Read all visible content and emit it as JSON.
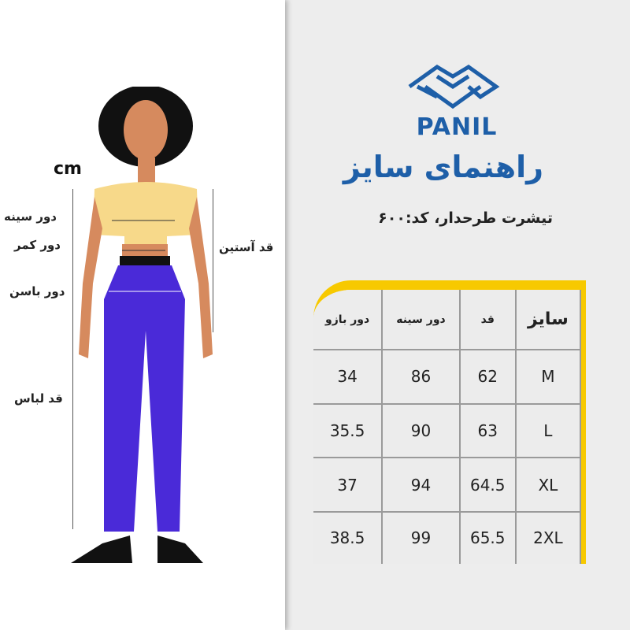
{
  "figure": {
    "unit": "cm",
    "labels": {
      "chest": "دور سینه",
      "waist": "دور کمر",
      "hip": "دور باسن",
      "length": "قد لباس",
      "sleeve": "قد آستین"
    }
  },
  "brand": {
    "name": "PANIL",
    "color": "#1e5fa8"
  },
  "title": "راهنمای سایز",
  "subtitle": "تیشرت طرحدار، کد:۶۰۰",
  "table": {
    "headers": [
      "دور بازو",
      "دور سینه",
      "قد",
      "سایز"
    ],
    "rows": [
      [
        "34",
        "86",
        "62",
        "M"
      ],
      [
        "35.5",
        "90",
        "63",
        "L"
      ],
      [
        "37",
        "94",
        "64.5",
        "XL"
      ],
      [
        "38.5",
        "99",
        "65.5",
        "2XL"
      ]
    ]
  },
  "accent": "#f7c900"
}
